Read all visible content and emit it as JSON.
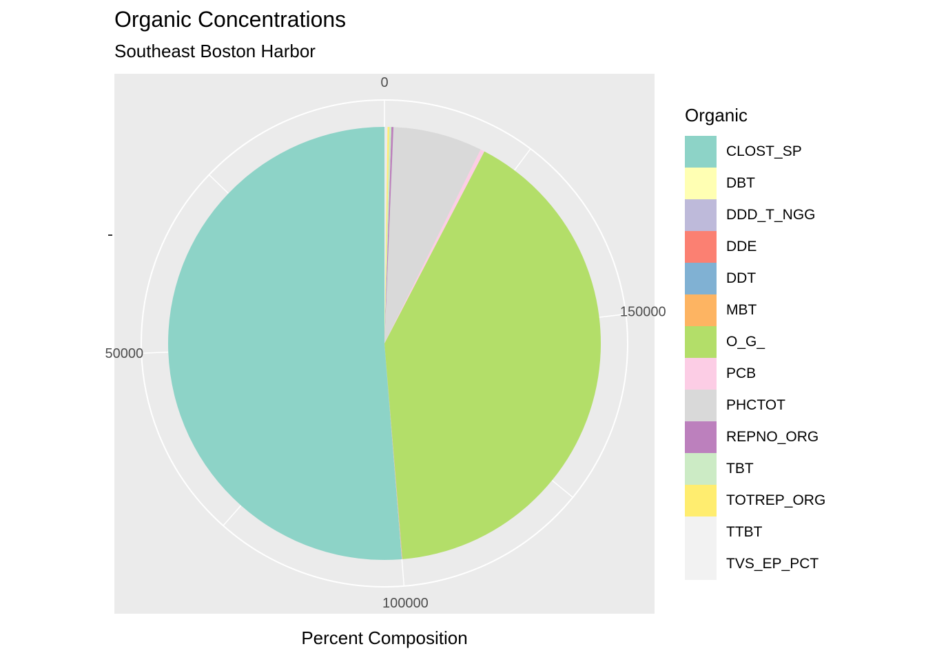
{
  "chart_data": {
    "type": "pie",
    "title": "Organic Concentrations",
    "subtitle": "Southeast Boston Harbor",
    "xlabel": "Percent Composition",
    "ylabel": "",
    "radial_ticks": [
      {
        "value": 0,
        "label": "0"
      },
      {
        "value": 50000,
        "label": "50000"
      },
      {
        "value": 100000,
        "label": "100000"
      },
      {
        "value": 150000,
        "label": "150000"
      }
    ],
    "total": 195000,
    "legend_title": "Organic",
    "legend_position": "right",
    "slices": [
      {
        "name": "CLOST_SP",
        "value": 100000,
        "color": "#8DD3C7"
      },
      {
        "name": "DBT",
        "value": 20,
        "color": "#FFFFB3"
      },
      {
        "name": "DDD_T_NGG",
        "value": 20,
        "color": "#BEBADA"
      },
      {
        "name": "DDE",
        "value": 25,
        "color": "#FB8072"
      },
      {
        "name": "DDT",
        "value": 15,
        "color": "#80B1D3"
      },
      {
        "name": "MBT",
        "value": 25,
        "color": "#FDB462"
      },
      {
        "name": "O_G_",
        "value": 80000,
        "color": "#B3DE69"
      },
      {
        "name": "PCB",
        "value": 600,
        "color": "#FCCDE5"
      },
      {
        "name": "PHCTOT",
        "value": 13000,
        "color": "#D9D9D9"
      },
      {
        "name": "REPNO_ORG",
        "value": 300,
        "color": "#BC80BD"
      },
      {
        "name": "TBT",
        "value": 300,
        "color": "#CCEBC5"
      },
      {
        "name": "TOTREP_ORG",
        "value": 250,
        "color": "#FFED6F"
      },
      {
        "name": "TTBT",
        "value": 0,
        "color": "#F2F2F2"
      },
      {
        "name": "TVS_EP_PCT",
        "value": 0,
        "color": "#F2F2F2"
      }
    ]
  }
}
